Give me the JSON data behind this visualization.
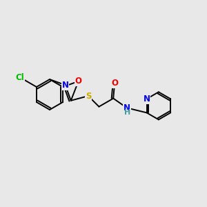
{
  "background_color": "#e8e8e8",
  "bond_color": "#000000",
  "atom_colors": {
    "Cl": "#00bb00",
    "N": "#0000ee",
    "O": "#ee0000",
    "S": "#ccaa00",
    "C": "#000000",
    "H": "#40a0a0"
  },
  "figsize": [
    3.0,
    3.0
  ],
  "dpi": 100,
  "lw": 1.4,
  "fontsize": 8.5
}
